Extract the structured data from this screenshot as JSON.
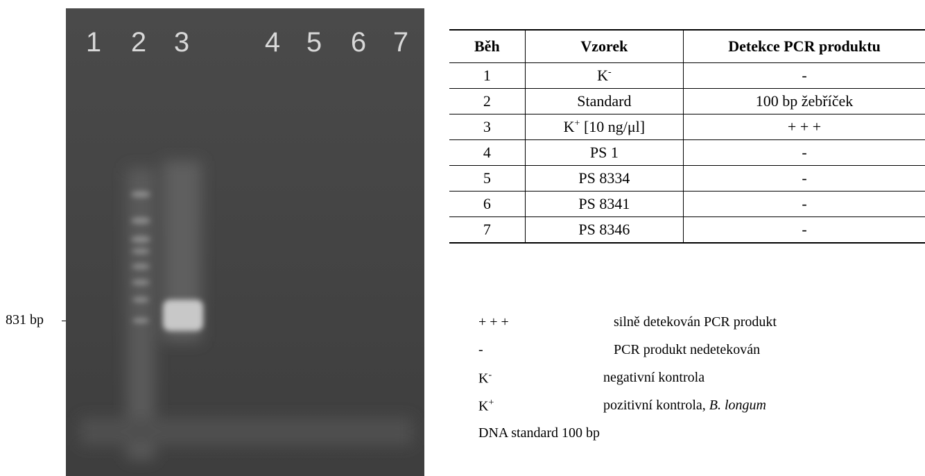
{
  "gel": {
    "lanes": [
      "1",
      "2",
      "3",
      "4",
      "5",
      "6",
      "7"
    ],
    "marker": "831 bp"
  },
  "table": {
    "header": [
      "Běh",
      "Vzorek",
      "Detekce PCR produktu"
    ],
    "rows": [
      [
        "1",
        {
          "main": "K",
          "sup": "-"
        },
        "-"
      ],
      [
        "2",
        "Standard",
        "100 bp žebříček"
      ],
      [
        "3",
        {
          "main": "K",
          "sup": "+",
          "suffix": " [10 ng/μl]"
        },
        "+ + +"
      ],
      [
        "4",
        "PS 1",
        "-"
      ],
      [
        "5",
        "PS 8334",
        "-"
      ],
      [
        "6",
        "PS 8341",
        "-"
      ],
      [
        "7",
        "PS 8346",
        "-"
      ]
    ]
  },
  "legend": [
    {
      "term": "+ + +",
      "desc": "silně detekován PCR produkt"
    },
    {
      "term": "-",
      "desc": "PCR produkt nedetekován"
    },
    {
      "term": {
        "main": "K",
        "sup": "-"
      },
      "desc": "negativní kontrola"
    },
    {
      "term": {
        "main": "K",
        "sup": "+"
      },
      "desc": [
        "pozitivní kontrola, ",
        "B. longum"
      ]
    },
    {
      "term": "DNA standard 100 bp"
    }
  ]
}
